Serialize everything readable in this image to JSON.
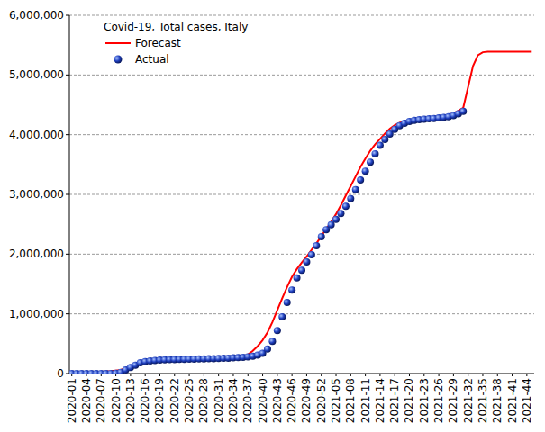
{
  "chart_data": {
    "type": "line",
    "title": "Covid-19, Total cases, Italy",
    "categories": [
      "2020-01",
      null,
      null,
      "2020-04",
      null,
      null,
      "2020-07",
      null,
      null,
      "2020-10",
      null,
      null,
      "2020-13",
      null,
      null,
      "2020-16",
      null,
      null,
      "2020-19",
      null,
      null,
      "2020-22",
      null,
      null,
      "2020-25",
      null,
      null,
      "2020-28",
      null,
      null,
      "2020-31",
      null,
      null,
      "2020-34",
      null,
      null,
      "2020-37",
      null,
      null,
      "2020-40",
      null,
      null,
      "2020-43",
      null,
      null,
      "2020-46",
      null,
      null,
      "2020-49",
      null,
      null,
      "2020-52",
      null,
      null,
      "2021-05",
      null,
      null,
      "2021-08",
      null,
      null,
      "2021-11",
      null,
      null,
      "2021-14",
      null,
      null,
      "2021-17",
      null,
      null,
      "2021-20",
      null,
      null,
      "2021-23",
      null,
      null,
      "2021-26",
      null,
      null,
      "2021-29",
      null,
      null,
      "2021-32",
      null,
      null,
      "2021-35",
      null,
      null,
      "2021-38",
      null,
      null,
      "2021-41",
      null,
      null,
      "2021-44",
      null
    ],
    "series": [
      {
        "name": "Forecast",
        "color": "#ff0000",
        "type": "line",
        "line_style": "solid",
        "marker": "none",
        "values": [
          20000,
          20000,
          20000,
          20000,
          20000,
          25000,
          30000,
          35000,
          40000,
          50000,
          60000,
          90000,
          120000,
          150000,
          175000,
          190000,
          200000,
          205000,
          210000,
          212000,
          214000,
          216000,
          218000,
          220000,
          222000,
          224000,
          226000,
          228000,
          230000,
          235000,
          240000,
          245000,
          250000,
          258000,
          268000,
          285000,
          320000,
          380000,
          460000,
          560000,
          690000,
          860000,
          1060000,
          1260000,
          1450000,
          1620000,
          1750000,
          1860000,
          1960000,
          2070000,
          2180000,
          2300000,
          2420000,
          2540000,
          2670000,
          2820000,
          2980000,
          3140000,
          3300000,
          3460000,
          3600000,
          3730000,
          3840000,
          3930000,
          4020000,
          4100000,
          4160000,
          4200000,
          4220000,
          4240000,
          4250000,
          4260000,
          4270000,
          4280000,
          4290000,
          4300000,
          4310000,
          4330000,
          4360000,
          4400000,
          4450000,
          4800000,
          5150000,
          5330000,
          5380000,
          5390000,
          5390000,
          5390000,
          5390000,
          5390000,
          5390000,
          5390000,
          5390000,
          5390000,
          5390000
        ]
      },
      {
        "name": "Actual",
        "color": "#1f3fbf",
        "type": "scatter",
        "line_style": "none",
        "marker": "circle",
        "values": [
          0,
          0,
          0,
          0,
          0,
          0,
          0,
          0,
          1000,
          5000,
          20000,
          60000,
          100000,
          140000,
          180000,
          200000,
          210000,
          220000,
          225000,
          230000,
          232000,
          234000,
          236000,
          238000,
          240000,
          242000,
          244000,
          246000,
          248000,
          250000,
          252000,
          255000,
          258000,
          262000,
          266000,
          272000,
          280000,
          290000,
          310000,
          340000,
          410000,
          540000,
          720000,
          950000,
          1190000,
          1400000,
          1600000,
          1730000,
          1870000,
          1990000,
          2140000,
          2290000,
          2410000,
          2490000,
          2580000,
          2680000,
          2800000,
          2930000,
          3080000,
          3240000,
          3390000,
          3540000,
          3680000,
          3820000,
          3920000,
          4010000,
          4090000,
          4150000,
          4190000,
          4220000,
          4240000,
          4250000,
          4260000,
          4265000,
          4270000,
          4280000,
          4290000,
          4300000,
          4320000,
          4350000,
          4390000,
          null,
          null,
          null,
          null,
          null,
          null,
          null,
          null,
          null,
          null,
          null,
          null,
          null,
          null
        ]
      }
    ],
    "ylim": [
      0,
      6000000
    ],
    "yticks": [
      0,
      {
        "value": 1000000,
        "label": "1,000,000"
      },
      {
        "value": 2000000,
        "label": "2,000,000"
      },
      {
        "value": 3000000,
        "label": "3,000,000"
      },
      {
        "value": 4000000,
        "label": "4,000,000"
      },
      {
        "value": 5000000,
        "label": "5,000,000"
      },
      {
        "value": 6000000,
        "label": "6,000,000"
      }
    ],
    "grid": true,
    "legend": "upper left"
  }
}
